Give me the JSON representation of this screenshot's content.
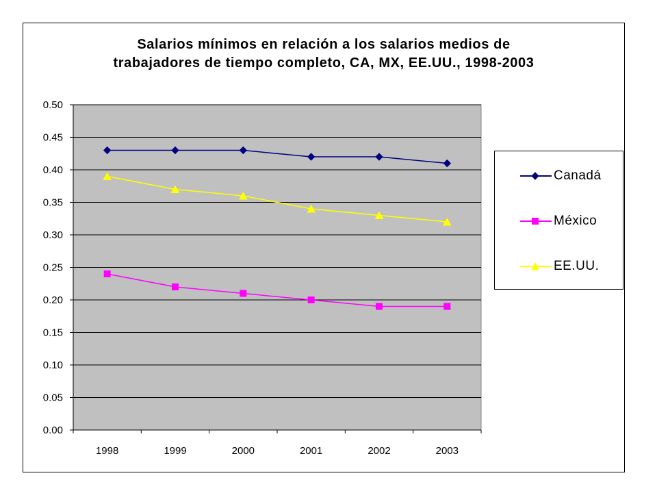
{
  "chart_data": {
    "type": "line",
    "title_lines": [
      "Salarios mínimos en relación a los salarios medios de",
      "trabajadores de tiempo completo, CA, MX, EE.UU., 1998-2003"
    ],
    "categories": [
      "1998",
      "1999",
      "2000",
      "2001",
      "2002",
      "2003"
    ],
    "y_ticks": [
      "0.00",
      "0.05",
      "0.10",
      "0.15",
      "0.20",
      "0.25",
      "0.30",
      "0.35",
      "0.40",
      "0.45",
      "0.50"
    ],
    "ylim": [
      0,
      0.5
    ],
    "grid": true,
    "legend_position": "right",
    "plot_background": "#c0c0c0",
    "series": [
      {
        "name": "Canadá",
        "values": [
          0.43,
          0.43,
          0.43,
          0.42,
          0.42,
          0.41
        ],
        "color": "#000080",
        "marker": "diamond"
      },
      {
        "name": "México",
        "values": [
          0.24,
          0.22,
          0.21,
          0.2,
          0.19,
          0.19
        ],
        "color": "#ff00ff",
        "marker": "square"
      },
      {
        "name": "EE.UU.",
        "values": [
          0.39,
          0.37,
          0.36,
          0.34,
          0.33,
          0.32
        ],
        "color": "#ffff00",
        "marker": "triangle"
      }
    ]
  }
}
